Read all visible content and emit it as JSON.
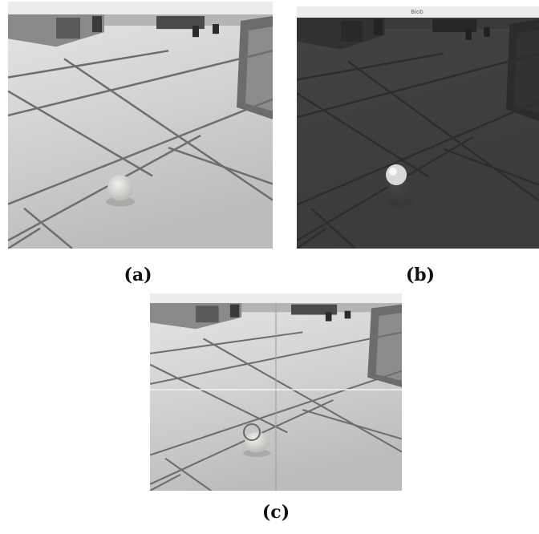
{
  "figure": {
    "panels": [
      {
        "caption": "(a)"
      },
      {
        "caption": "(b)",
        "window_title": "Blob"
      },
      {
        "caption": "(c)"
      }
    ]
  }
}
